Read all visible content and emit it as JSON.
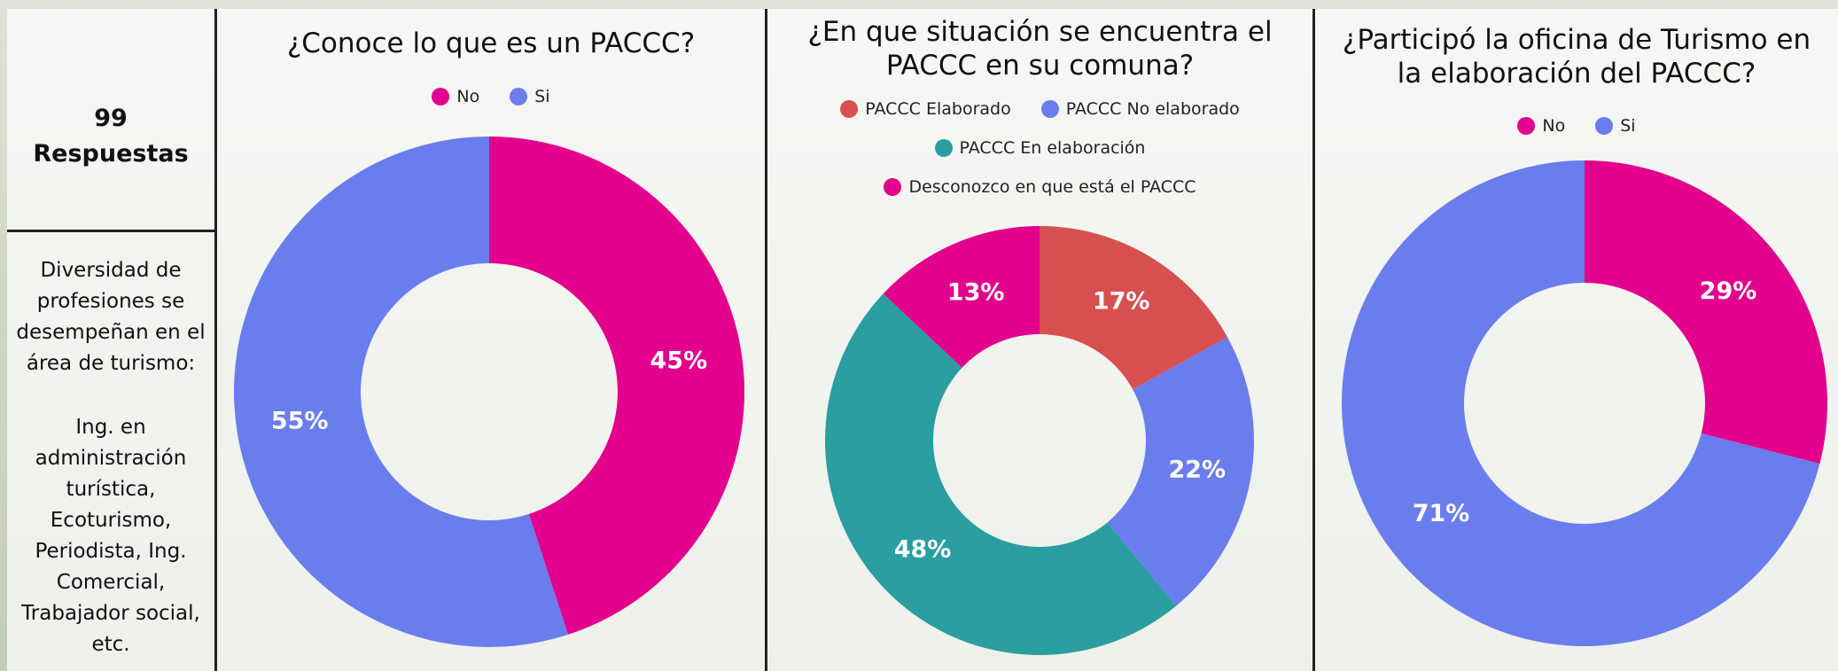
{
  "sidebar": {
    "count": "99",
    "count_label": "Respuestas",
    "description": "Diversidad de profesiones se desempeñan en el área de turismo:",
    "professions": "Ing. en administración turística, Ecoturismo, Periodista, Ing. Comercial, Trabajador social, etc."
  },
  "chart_data": [
    {
      "type": "donut",
      "title": "¿Conoce lo que es un PACCC?",
      "categories": [
        "No",
        "Si"
      ],
      "values": [
        45,
        55
      ],
      "value_labels": [
        "45%",
        "55%"
      ],
      "colors": [
        "#e3008c",
        "#6a7ded"
      ]
    },
    {
      "type": "donut",
      "title": "¿En que situación se encuentra el PACCC en su comuna?",
      "categories": [
        "PACCC Elaborado",
        "PACCC No elaborado",
        "PACCC En elaboración",
        "Desconozco en que está el PACCC"
      ],
      "values": [
        17,
        22,
        48,
        13
      ],
      "value_labels": [
        "17%",
        "22%",
        "48%",
        "13%"
      ],
      "colors": [
        "#d84f50",
        "#6a7ded",
        "#2a9ea0",
        "#e3008c"
      ]
    },
    {
      "type": "donut",
      "title": "¿Participó la oficina de Turismo en la elaboración del PACCC?",
      "categories": [
        "No",
        "Si"
      ],
      "values": [
        29,
        71
      ],
      "value_labels": [
        "29%",
        "71%"
      ],
      "colors": [
        "#e3008c",
        "#6a7ded"
      ]
    }
  ]
}
